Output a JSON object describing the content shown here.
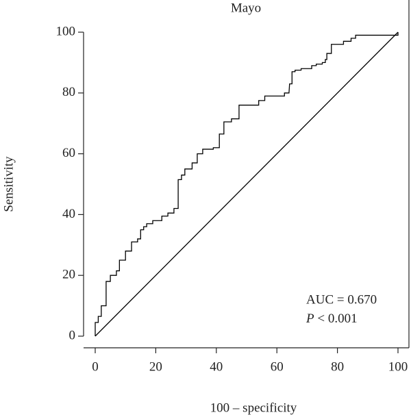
{
  "chart_data": {
    "type": "line",
    "title": "Mayo",
    "x_label": "100 – specificity",
    "y_label": "Sensitivity",
    "xlim": [
      0,
      100
    ],
    "ylim": [
      0,
      100
    ],
    "xticks": [
      0,
      20,
      40,
      60,
      80,
      100
    ],
    "yticks": [
      0,
      20,
      40,
      60,
      80,
      100
    ],
    "annotations": [
      "AUC = 0.670",
      "P < 0.001"
    ],
    "series": [
      {
        "name": "Mayo",
        "color": "#000000",
        "x": [
          0,
          0,
          1,
          1,
          2,
          2,
          3.6,
          3.6,
          5,
          5,
          7,
          7,
          8,
          8,
          10,
          10,
          12,
          12,
          14,
          14,
          15,
          15,
          16,
          16,
          17,
          17,
          19,
          19,
          22,
          22,
          24,
          24,
          26,
          26,
          27.4,
          27.4,
          28.5,
          28.5,
          29.6,
          29.6,
          32,
          32,
          33.7,
          33.7,
          35.5,
          35.5,
          39,
          39,
          41,
          41,
          42.5,
          42.5,
          45,
          45,
          47.5,
          47.5,
          54,
          54,
          56,
          56,
          62.5,
          62.5,
          64,
          64.2,
          65,
          65,
          66,
          66,
          68,
          68,
          71.5,
          71.5,
          73,
          73,
          75,
          75,
          76,
          76,
          76.5,
          76.5,
          78,
          78,
          82,
          82,
          84.5,
          84.5,
          86,
          86,
          100,
          100
        ],
        "y": [
          0,
          4.5,
          4.5,
          6.5,
          6.5,
          10,
          10,
          18,
          18,
          20,
          20,
          21.5,
          21.5,
          25,
          25,
          28,
          28,
          31,
          31,
          32,
          32,
          35,
          35,
          36,
          36,
          37,
          37,
          38,
          38,
          39.5,
          39.5,
          40.5,
          40.5,
          42,
          42,
          51.5,
          51.5,
          53,
          53,
          55,
          55,
          57,
          57,
          60,
          60,
          61.5,
          61.5,
          62,
          62,
          66.5,
          66.5,
          70.5,
          70.5,
          71.5,
          71.5,
          76,
          76,
          77.5,
          77.5,
          79,
          79,
          80,
          80,
          83,
          83,
          87,
          87,
          87.5,
          87.5,
          88,
          88,
          89,
          89,
          89.5,
          89.5,
          90,
          90,
          91,
          91,
          93,
          93,
          96,
          96,
          97,
          97,
          98,
          98,
          99,
          99,
          100
        ]
      },
      {
        "name": "Reference",
        "color": "#000000",
        "x": [
          0,
          100
        ],
        "y": [
          0,
          100
        ]
      }
    ]
  }
}
